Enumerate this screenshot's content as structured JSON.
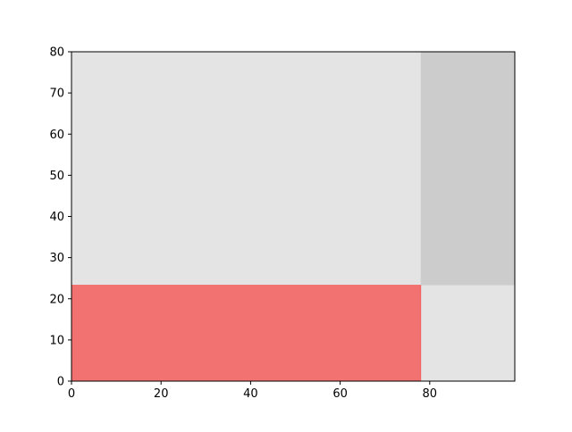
{
  "chart_data": {
    "type": "area",
    "title": "",
    "xlabel": "",
    "ylabel": "",
    "xlim": [
      0,
      99
    ],
    "ylim": [
      0,
      80
    ],
    "x_ticks": [
      0,
      20,
      40,
      60,
      80
    ],
    "y_ticks": [
      0,
      10,
      20,
      30,
      40,
      50,
      60,
      70,
      80
    ],
    "x_tick_labels": [
      "0",
      "20",
      "40",
      "60",
      "80"
    ],
    "y_tick_labels": [
      "0",
      "10",
      "20",
      "30",
      "40",
      "50",
      "60",
      "70",
      "80"
    ],
    "grid": false,
    "legend": "none",
    "regions": [
      {
        "id": "background",
        "x": [
          0,
          99
        ],
        "y": [
          0,
          80
        ],
        "color": "#e4e4e4",
        "alpha": 1
      },
      {
        "id": "right-band",
        "x": [
          78,
          99
        ],
        "y": [
          23.3,
          80
        ],
        "color": "#cccccc",
        "alpha": 1
      },
      {
        "id": "highlight",
        "x": [
          0,
          78
        ],
        "y": [
          0,
          23.3
        ],
        "color": "#ff0000",
        "alpha": 0.5
      }
    ]
  }
}
